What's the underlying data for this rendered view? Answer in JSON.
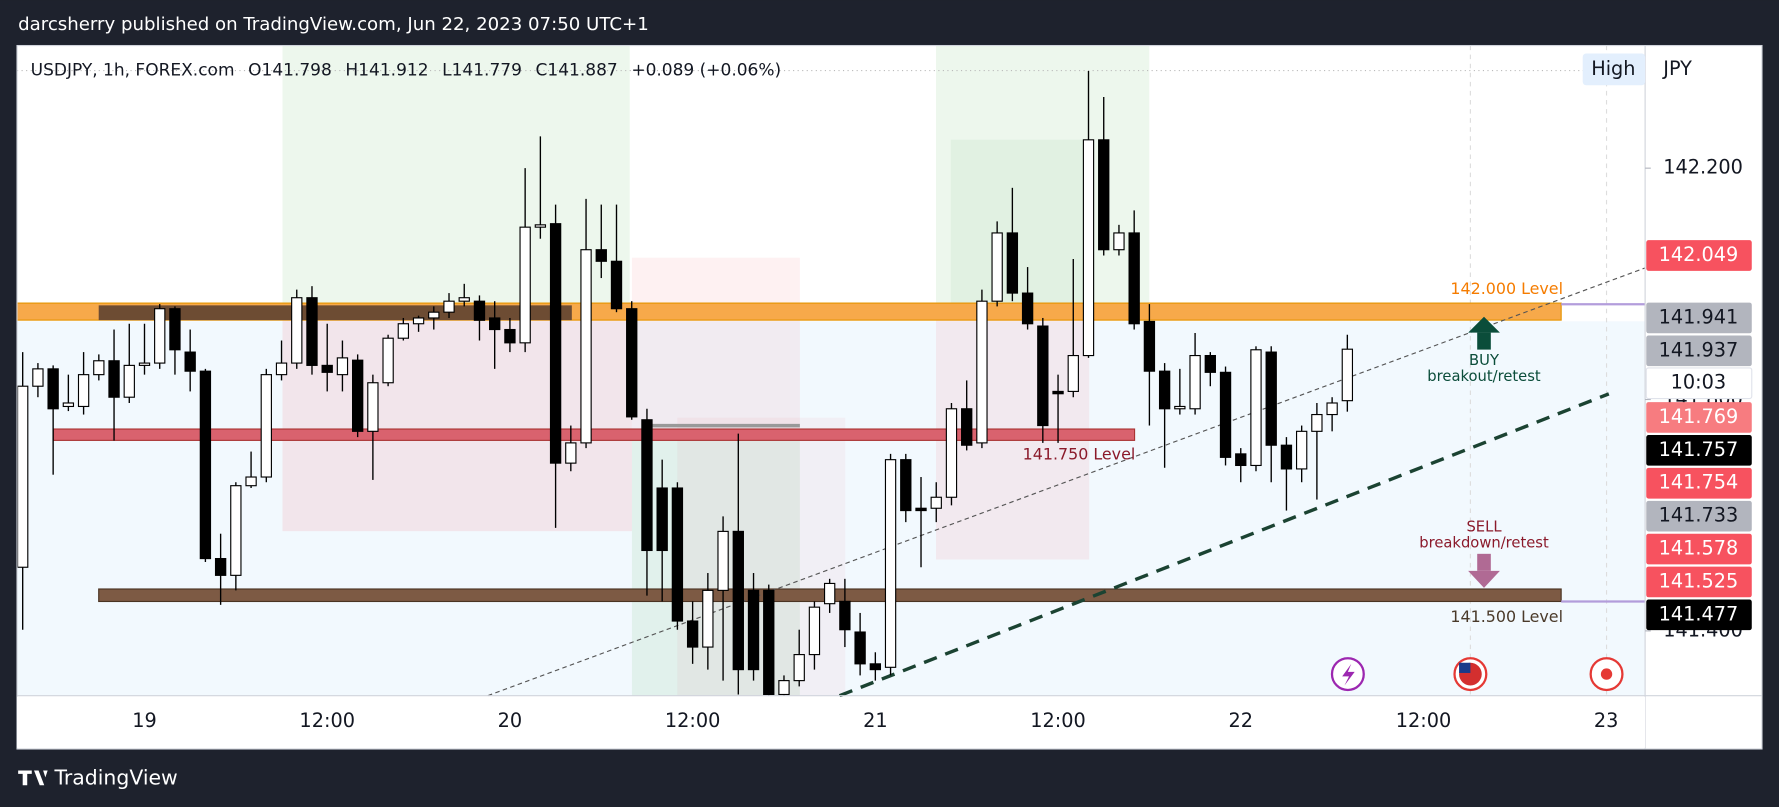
{
  "header": "darcsherry published on TradingView.com, Jun 22, 2023 07:50 UTC+1",
  "footer_logo": "TradingView",
  "button": "High",
  "currency": "JPY",
  "chart_data": {
    "type": "candlestick",
    "legend": {
      "symbol": "USDJPY, 1h, FOREX.com",
      "open": "O141.798",
      "high": "H141.912",
      "low": "L141.779",
      "close": "C141.887",
      "change": "+0.089 (+0.06%)"
    },
    "categories": [
      null,
      null,
      null,
      null,
      null,
      null,
      null,
      null,
      "19",
      null,
      null,
      null,
      null,
      null,
      null,
      null,
      null,
      null,
      null,
      null,
      "12:00",
      null,
      null,
      null,
      null,
      null,
      null,
      null,
      null,
      null,
      null,
      null,
      "20",
      null,
      null,
      null,
      null,
      null,
      null,
      null,
      null,
      null,
      null,
      null,
      "12:00",
      null,
      null,
      null,
      null,
      null,
      null,
      null,
      null,
      null,
      null,
      null,
      "21",
      null,
      null,
      null,
      null,
      null,
      null,
      null,
      null,
      null,
      null,
      null,
      "12:00",
      null,
      null,
      null,
      null,
      null,
      null,
      null,
      null,
      null,
      null,
      null,
      "22",
      null,
      null,
      null,
      null,
      null,
      null,
      null,
      null,
      null,
      null,
      null,
      "12:00",
      null,
      null,
      null,
      null,
      null,
      null,
      null,
      null,
      null,
      null,
      null,
      "23"
    ],
    "open": [
      141.51,
      141.823,
      141.853,
      141.788,
      141.788,
      141.843,
      141.867,
      141.804,
      141.859,
      141.863,
      141.957,
      141.882,
      141.849,
      141.525,
      141.496,
      141.651,
      141.666,
      141.843,
      141.863,
      141.976,
      141.859,
      141.843,
      141.868,
      141.745,
      141.829,
      141.906,
      141.931,
      141.941,
      141.951,
      141.97,
      141.97,
      141.941,
      141.921,
      141.898,
      142.098,
      142.104,
      141.69,
      141.725,
      142.059,
      142.039,
      141.957,
      141.765,
      141.647,
      141.647,
      141.417,
      141.372,
      141.47,
      141.572,
      141.47,
      141.47,
      141.29,
      141.314,
      141.359,
      141.447,
      141.451,
      141.398,
      141.343,
      141.337,
      141.696,
      141.612,
      141.612,
      141.631,
      141.784,
      141.725,
      141.97,
      142.088,
      141.984,
      141.927,
      141.814,
      141.814,
      141.876,
      142.249,
      142.059,
      142.088,
      141.935,
      141.849,
      141.784,
      141.784,
      141.876,
      141.847,
      141.706,
      141.686,
      141.882,
      141.721,
      141.68,
      141.745,
      141.774,
      141.798,
      null,
      null,
      null,
      null,
      null,
      null,
      null,
      null,
      null,
      null,
      null,
      null,
      null,
      null,
      null,
      null,
      null
    ],
    "high": [
      141.882,
      141.863,
      141.859,
      141.843,
      141.882,
      141.878,
      141.921,
      141.931,
      141.931,
      141.965,
      141.961,
      141.921,
      141.853,
      141.568,
      141.657,
      141.71,
      141.853,
      141.902,
      141.99,
      141.996,
      141.931,
      141.902,
      141.878,
      141.843,
      141.912,
      141.941,
      141.945,
      141.961,
      141.984,
      142.0,
      141.98,
      141.97,
      141.941,
      142.2,
      142.255,
      142.137,
      141.755,
      142.147,
      142.137,
      142.137,
      141.97,
      141.784,
      141.696,
      141.657,
      141.451,
      141.5,
      141.598,
      141.741,
      141.5,
      141.48,
      141.323,
      141.402,
      141.451,
      141.49,
      141.49,
      141.431,
      141.363,
      141.706,
      141.706,
      141.666,
      141.657,
      141.794,
      141.833,
      141.99,
      142.108,
      142.166,
      142.029,
      141.941,
      141.843,
      142.043,
      142.368,
      142.323,
      142.102,
      142.127,
      141.965,
      141.863,
      141.853,
      141.915,
      141.882,
      141.857,
      141.716,
      141.892,
      141.892,
      141.735,
      141.755,
      141.794,
      141.804,
      141.912,
      null,
      null,
      null,
      null,
      null,
      null,
      null,
      null,
      null,
      null,
      null,
      null,
      null,
      null,
      null,
      null,
      null
    ],
    "low": [
      141.402,
      141.804,
      141.67,
      141.78,
      141.774,
      141.833,
      141.729,
      141.794,
      141.843,
      141.853,
      141.843,
      141.814,
      141.519,
      141.445,
      141.47,
      141.647,
      141.657,
      141.833,
      141.853,
      141.843,
      141.814,
      141.814,
      141.735,
      141.661,
      141.823,
      141.902,
      141.917,
      141.921,
      141.941,
      141.961,
      141.902,
      141.853,
      141.882,
      141.882,
      142.078,
      141.578,
      141.676,
      141.716,
      142.01,
      141.951,
      141.765,
      141.461,
      141.451,
      141.402,
      141.343,
      141.333,
      141.314,
      141.29,
      141.314,
      141.288,
      141.288,
      141.304,
      141.333,
      141.431,
      141.372,
      141.323,
      141.314,
      141.323,
      141.588,
      141.51,
      141.588,
      141.617,
      141.712,
      141.716,
      141.961,
      141.97,
      141.921,
      141.725,
      141.725,
      141.804,
      141.872,
      142.049,
      142.049,
      141.921,
      141.755,
      141.682,
      141.774,
      141.774,
      141.823,
      141.686,
      141.657,
      141.676,
      141.657,
      141.608,
      141.657,
      141.627,
      141.745,
      141.779,
      null,
      null,
      null,
      null,
      null,
      null,
      null,
      null,
      null,
      null,
      null,
      null,
      null,
      null,
      null,
      null,
      null
    ],
    "close": [
      141.823,
      141.853,
      141.784,
      141.794,
      141.843,
      141.867,
      141.804,
      141.859,
      141.863,
      141.957,
      141.886,
      141.849,
      141.525,
      141.496,
      141.651,
      141.666,
      141.843,
      141.863,
      141.976,
      141.859,
      141.847,
      141.872,
      141.745,
      141.829,
      141.906,
      141.931,
      141.941,
      141.951,
      141.97,
      141.976,
      141.937,
      141.921,
      141.898,
      142.098,
      142.102,
      141.69,
      141.725,
      142.059,
      142.039,
      141.957,
      141.77,
      141.539,
      141.539,
      141.417,
      141.372,
      141.47,
      141.572,
      141.333,
      141.333,
      141.29,
      141.314,
      141.359,
      141.441,
      141.482,
      141.402,
      141.343,
      141.333,
      141.696,
      141.608,
      141.608,
      141.631,
      141.784,
      141.721,
      141.97,
      142.088,
      141.984,
      141.931,
      141.755,
      141.81,
      141.876,
      142.249,
      142.059,
      142.088,
      141.931,
      141.849,
      141.784,
      141.788,
      141.876,
      141.847,
      141.7,
      141.686,
      141.886,
      141.721,
      141.68,
      141.745,
      141.774,
      141.794,
      141.887,
      null,
      null,
      null,
      null,
      null,
      null,
      null,
      null,
      null,
      null,
      null,
      null,
      null,
      null,
      null,
      null,
      null
    ],
    "up_color": "#ffffff",
    "down_color": "#000000",
    "ylim": [
      141.288,
      142.412
    ],
    "yticks": [
      {
        "value": 141.4,
        "label": "141.400"
      },
      {
        "value": 141.8,
        "label": "141.800"
      },
      {
        "value": 142.2,
        "label": "142.200"
      }
    ],
    "price_labels": [
      {
        "value": 142.049,
        "color": "#f7525f",
        "text_color": "#ffffff"
      },
      {
        "value": 141.941,
        "color": "#b2b5be",
        "text_color": "#131722"
      },
      {
        "value": 141.937,
        "color": "#b2b5be",
        "text_color": "#131722"
      },
      {
        "value": 141.769,
        "color": "#f77c80",
        "text_color": "#ffffff"
      },
      {
        "value": 141.757,
        "color": "#000000",
        "text_color": "#ffffff"
      },
      {
        "value": 141.754,
        "color": "#f7525f",
        "text_color": "#ffffff"
      },
      {
        "value": 141.733,
        "color": "#b2b5be",
        "text_color": "#131722"
      },
      {
        "value": 141.578,
        "color": "#f7525f",
        "text_color": "#ffffff"
      },
      {
        "value": 141.525,
        "color": "#f7525f",
        "text_color": "#ffffff"
      },
      {
        "value": 141.477,
        "color": "#000000",
        "text_color": "#ffffff"
      }
    ],
    "countdown": "10:03",
    "levels": [
      "142.000 Level",
      "141.750 Level",
      "141.500 Level"
    ],
    "buy": {
      "title": "BUY",
      "subtitle": "breakout/retest"
    },
    "sell": {
      "title": "SELL",
      "subtitle": "breakdown/retest"
    }
  }
}
